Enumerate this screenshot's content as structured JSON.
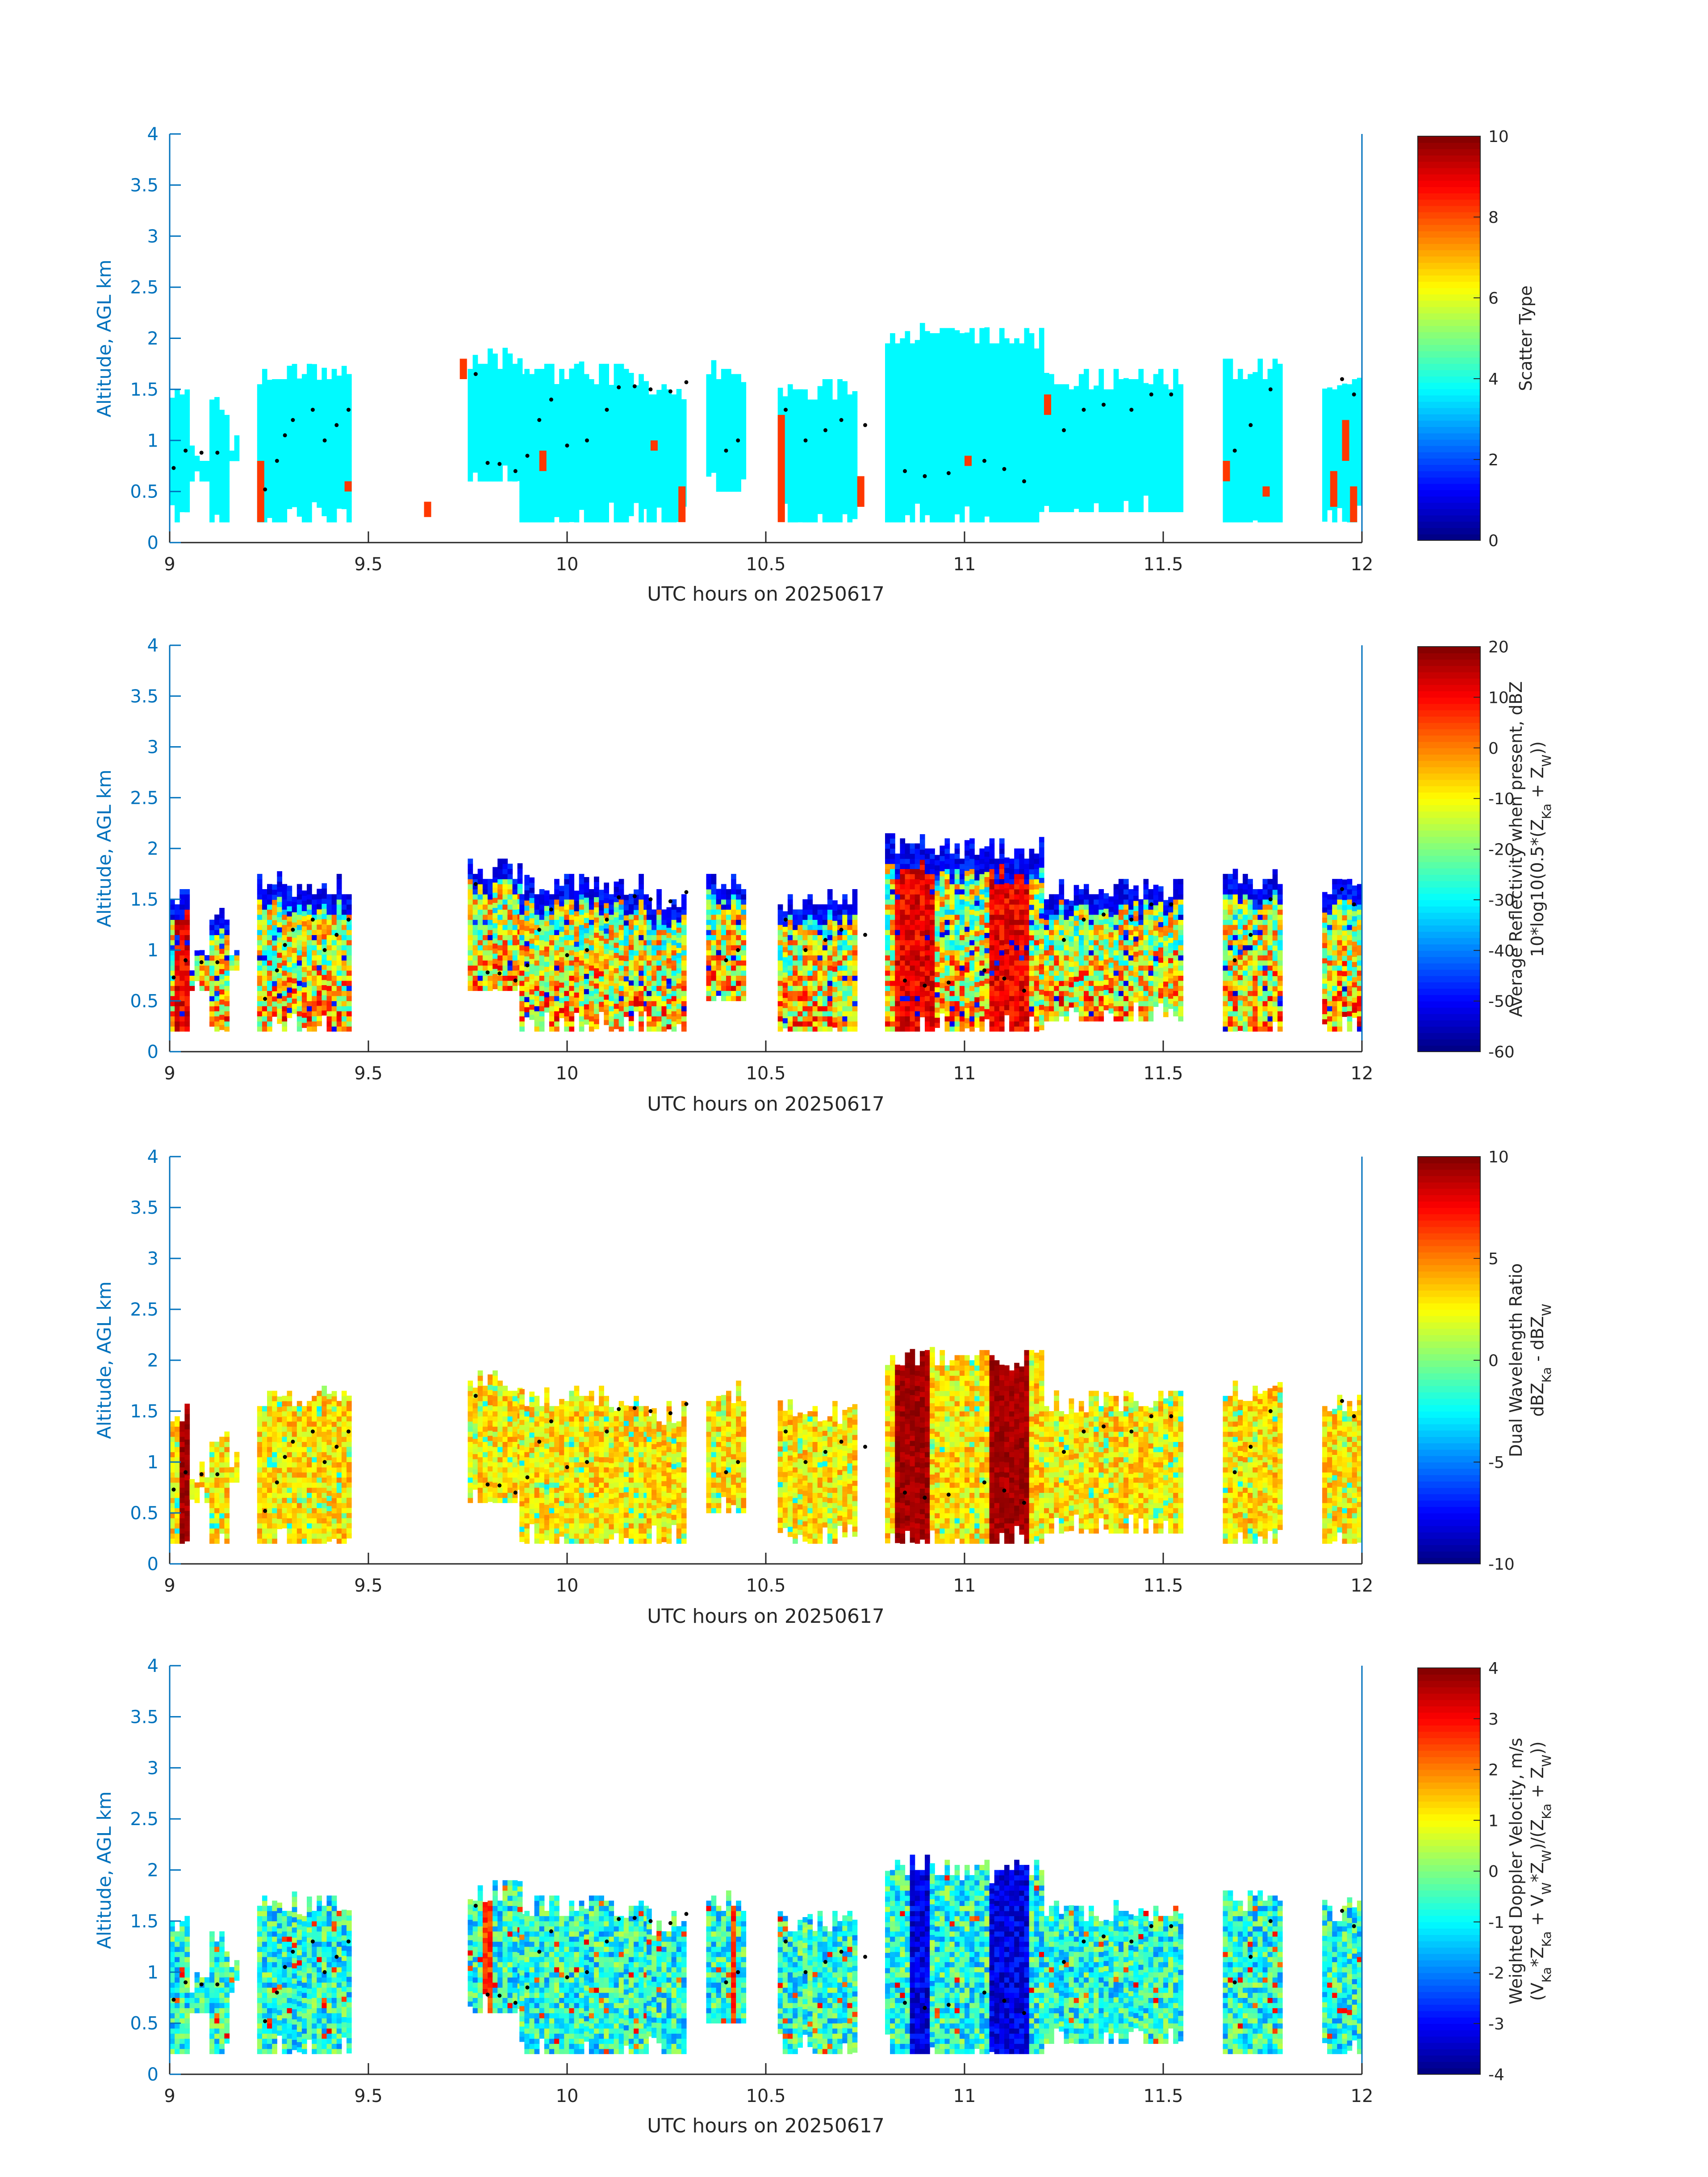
{
  "figure": {
    "shared_xlabel": "UTC hours on 20250617",
    "shared_ylabel": "Altitude, AGL km"
  },
  "chart_data": [
    {
      "type": "heatmap",
      "panel": "scatter-type",
      "xlabel": "UTC hours on 20250617",
      "ylabel": "Altitude, AGL km",
      "xlim": [
        9,
        12
      ],
      "ylim": [
        0,
        4
      ],
      "x_ticks": [
        9,
        9.5,
        10,
        10.5,
        11,
        11.5,
        12
      ],
      "y_ticks": [
        0,
        0.5,
        1,
        1.5,
        2,
        2.5,
        3,
        3.5,
        4
      ],
      "colorbar": {
        "label_lines": [
          "Scatter Type"
        ],
        "range": [
          0,
          10
        ],
        "ticks": [
          0,
          2,
          4,
          6,
          8,
          10
        ]
      },
      "dominant_value": 3.7,
      "secondary_value": 8.2,
      "secondary_cells": [
        [
          9.22,
          0.2,
          0.8
        ],
        [
          9.44,
          0.5,
          0.6
        ],
        [
          9.64,
          0.25,
          0.4
        ],
        [
          9.73,
          1.6,
          1.8
        ],
        [
          9.93,
          0.7,
          0.9
        ],
        [
          10.21,
          0.9,
          1.0
        ],
        [
          10.28,
          0.2,
          0.55
        ],
        [
          10.53,
          0.2,
          1.25
        ],
        [
          10.73,
          0.35,
          0.65
        ],
        [
          11.0,
          0.75,
          0.85
        ],
        [
          11.2,
          1.25,
          1.45
        ],
        [
          11.65,
          0.6,
          0.8
        ],
        [
          11.75,
          0.45,
          0.55
        ],
        [
          11.92,
          0.35,
          0.7
        ],
        [
          11.95,
          0.8,
          1.2
        ],
        [
          11.97,
          0.2,
          0.55
        ]
      ]
    },
    {
      "type": "heatmap",
      "panel": "average-reflectivity",
      "xlabel": "UTC hours on 20250617",
      "ylabel": "Altitude, AGL km",
      "xlim": [
        9,
        12
      ],
      "ylim": [
        0,
        4
      ],
      "x_ticks": [
        9,
        9.5,
        10,
        10.5,
        11,
        11.5,
        12
      ],
      "y_ticks": [
        0,
        0.5,
        1,
        1.5,
        2,
        2.5,
        3,
        3.5,
        4
      ],
      "colorbar": {
        "label_lines": [
          "Average Reflectivity when present, dBZ",
          "10*log10(0.5*(Z",
          "Ka",
          " + Z",
          "W",
          "))"
        ],
        "range": [
          -60,
          20
        ],
        "ticks": [
          -60,
          -50,
          -40,
          -30,
          -20,
          -10,
          0,
          10,
          20
        ]
      },
      "core_value_range": [
        -25,
        15
      ],
      "edge_value": -55
    },
    {
      "type": "heatmap",
      "panel": "dual-wavelength-ratio",
      "xlabel": "UTC hours on 20250617",
      "ylabel": "Altitude, AGL km",
      "xlim": [
        9,
        12
      ],
      "ylim": [
        0,
        4
      ],
      "x_ticks": [
        9,
        9.5,
        10,
        10.5,
        11,
        11.5,
        12
      ],
      "y_ticks": [
        0,
        0.5,
        1,
        1.5,
        2,
        2.5,
        3,
        3.5,
        4
      ],
      "colorbar": {
        "label_lines": [
          "Dual Wavelength Ratio",
          "dBZ",
          "Ka",
          " - dBZ",
          "W"
        ],
        "range": [
          -10,
          10
        ],
        "ticks": [
          -10,
          -5,
          0,
          5,
          10
        ]
      },
      "typical_value_range": [
        1,
        5
      ],
      "peak_value": 10
    },
    {
      "type": "heatmap",
      "panel": "weighted-doppler-velocity",
      "xlabel": "UTC hours on 20250617",
      "ylabel": "Altitude, AGL km",
      "xlim": [
        9,
        12
      ],
      "ylim": [
        0,
        4
      ],
      "x_ticks": [
        9,
        9.5,
        10,
        10.5,
        11,
        11.5,
        12
      ],
      "y_ticks": [
        0,
        0.5,
        1,
        1.5,
        2,
        2.5,
        3,
        3.5,
        4
      ],
      "colorbar": {
        "label_lines": [
          "Weighted Doppler Velocity, m/s",
          "(V",
          "Ka",
          "*Z",
          "Ka",
          " + V",
          "W",
          "*Z",
          "W",
          ")/(Z",
          "Ka",
          " + Z",
          "W",
          "))"
        ],
        "range": [
          -4,
          4
        ],
        "ticks": [
          -4,
          -3,
          -2,
          -1,
          0,
          1,
          2,
          3,
          4
        ]
      },
      "typical_value_range": [
        -2,
        0.5
      ],
      "downdraft_value": -3.8
    }
  ],
  "cloud_columns": [
    {
      "x": [
        9.0,
        9.05
      ],
      "base": 0.2,
      "top": 1.6
    },
    {
      "x": [
        9.05,
        9.12
      ],
      "base": 0.6,
      "top": 1.0
    },
    {
      "x": [
        9.1,
        9.14
      ],
      "base": 0.2,
      "top": 1.4
    },
    {
      "x": [
        9.15,
        9.17
      ],
      "base": 0.8,
      "top": 1.1
    },
    {
      "x": [
        9.22,
        9.45
      ],
      "base": 0.2,
      "top": 1.75
    },
    {
      "x": [
        9.75,
        9.88
      ],
      "base": 0.6,
      "top": 1.9
    },
    {
      "x": [
        9.88,
        10.2
      ],
      "base": 0.2,
      "top": 1.75
    },
    {
      "x": [
        10.2,
        10.3
      ],
      "base": 0.2,
      "top": 1.6
    },
    {
      "x": [
        10.35,
        10.45
      ],
      "base": 0.5,
      "top": 1.8
    },
    {
      "x": [
        10.53,
        10.73
      ],
      "base": 0.2,
      "top": 1.6
    },
    {
      "x": [
        10.8,
        10.95
      ],
      "base": 0.2,
      "top": 2.15
    },
    {
      "x": [
        10.95,
        11.2
      ],
      "base": 0.2,
      "top": 2.1
    },
    {
      "x": [
        11.2,
        11.55
      ],
      "base": 0.3,
      "top": 1.7
    },
    {
      "x": [
        11.65,
        11.8
      ],
      "base": 0.2,
      "top": 1.8
    },
    {
      "x": [
        11.9,
        12.0
      ],
      "base": 0.2,
      "top": 1.7
    }
  ],
  "cloud_base_dots": [
    [
      9.01,
      0.73
    ],
    [
      9.04,
      0.9
    ],
    [
      9.08,
      0.88
    ],
    [
      9.12,
      0.88
    ],
    [
      9.24,
      0.52
    ],
    [
      9.27,
      0.8
    ],
    [
      9.29,
      1.05
    ],
    [
      9.31,
      1.2
    ],
    [
      9.36,
      1.3
    ],
    [
      9.39,
      1.0
    ],
    [
      9.42,
      1.15
    ],
    [
      9.45,
      1.3
    ],
    [
      9.77,
      1.65
    ],
    [
      9.8,
      0.78
    ],
    [
      9.83,
      0.77
    ],
    [
      9.87,
      0.7
    ],
    [
      9.9,
      0.85
    ],
    [
      9.93,
      1.2
    ],
    [
      9.96,
      1.4
    ],
    [
      10.0,
      0.95
    ],
    [
      10.05,
      1.0
    ],
    [
      10.1,
      1.3
    ],
    [
      10.13,
      1.52
    ],
    [
      10.17,
      1.53
    ],
    [
      10.21,
      1.5
    ],
    [
      10.26,
      1.48
    ],
    [
      10.3,
      1.57
    ],
    [
      10.4,
      0.9
    ],
    [
      10.43,
      1.0
    ],
    [
      10.55,
      1.3
    ],
    [
      10.6,
      1.0
    ],
    [
      10.65,
      1.1
    ],
    [
      10.69,
      1.2
    ],
    [
      10.75,
      1.15
    ],
    [
      10.85,
      0.7
    ],
    [
      10.9,
      0.65
    ],
    [
      10.96,
      0.68
    ],
    [
      11.05,
      0.8
    ],
    [
      11.1,
      0.72
    ],
    [
      11.15,
      0.6
    ],
    [
      11.25,
      1.1
    ],
    [
      11.3,
      1.3
    ],
    [
      11.35,
      1.35
    ],
    [
      11.42,
      1.3
    ],
    [
      11.47,
      1.45
    ],
    [
      11.52,
      1.45
    ],
    [
      11.68,
      0.9
    ],
    [
      11.72,
      1.15
    ],
    [
      11.77,
      1.5
    ],
    [
      11.95,
      1.6
    ],
    [
      11.98,
      1.45
    ]
  ]
}
